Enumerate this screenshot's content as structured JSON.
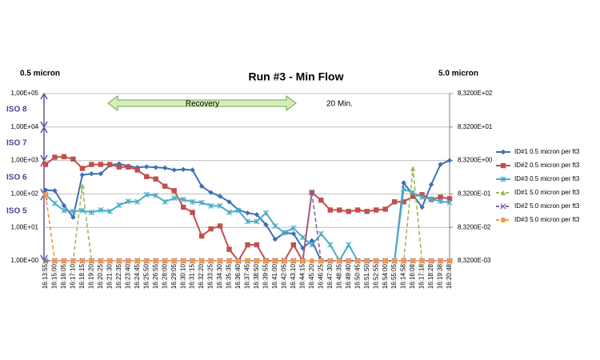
{
  "chart_data": {
    "type": "line",
    "title": "Run #3 - Min Flow",
    "y_axis_label": "0.5 micron",
    "y2_axis_label": "5.0 micron",
    "annotations": [
      "Recovery",
      "20 Min.",
      "ISO 8",
      "ISO 7",
      "ISO 6",
      "ISO 5"
    ],
    "log_scale": true,
    "legend": "right",
    "categories": [
      "16:13:55",
      "16:15:00",
      "16:16:05",
      "16:17:10",
      "16:18:15",
      "16:19:20",
      "16:20:25",
      "16:21:30",
      "16:22:35",
      "16:23:40",
      "16:24:45",
      "16:25:50",
      "16:26:55",
      "16:28:00",
      "16:29:05",
      "16:30:10",
      "16:31:15",
      "16:32:20",
      "16:33:25",
      "16:34:30",
      "16:35:35",
      "16:36:40",
      "16:37:45",
      "16:38:50",
      "16:39:55",
      "16:41:00",
      "16:42:05",
      "16:43:10",
      "16:44:15",
      "16:45:20",
      "16:46:25",
      "16:47:30",
      "16:48:35",
      "16:49:40",
      "16:50:45",
      "16:51:50",
      "16:52:55",
      "16:54:00",
      "16:55:05",
      "16:14:58",
      "16:16:08",
      "16:17:18",
      "16:18:28",
      "16:19:38",
      "16:20:48"
    ],
    "ylim": [
      1,
      100000
    ],
    "yticks": [
      {
        "value": 1,
        "label": "1,00E+00"
      },
      {
        "value": 10,
        "label": "1,00E+01"
      },
      {
        "value": 100,
        "label": "1,00E+02"
      },
      {
        "value": 1000,
        "label": "1,00E+03"
      },
      {
        "value": 10000,
        "label": "1,00E+04"
      },
      {
        "value": 100000,
        "label": "1,00E+05"
      }
    ],
    "y2lim": [
      0.00832,
      832
    ],
    "y2ticks": [
      {
        "value": 0.00832,
        "label": "8,3200E-03"
      },
      {
        "value": 0.0832,
        "label": "8,3200E-02"
      },
      {
        "value": 0.832,
        "label": "8,3200E-01"
      },
      {
        "value": 8.32,
        "label": "8,3200E+00"
      },
      {
        "value": 83.2,
        "label": "8,3200E+01"
      },
      {
        "value": 832,
        "label": "8,3200E+02"
      }
    ],
    "series": [
      {
        "name": "ID#1 0.5 micron per ft3",
        "color": "#3f6fb5",
        "marker": "diamond",
        "values": [
          130,
          125,
          45,
          20,
          370,
          400,
          400,
          720,
          800,
          680,
          620,
          650,
          620,
          600,
          520,
          540,
          520,
          170,
          110,
          85,
          58,
          33,
          27,
          24,
          12,
          4.4,
          6.8,
          6.5,
          2.4,
          4,
          1,
          1,
          1,
          1,
          1,
          1,
          1,
          1,
          1,
          215,
          95,
          40,
          190,
          760,
          1000
        ]
      },
      {
        "name": "ID#2 0.5 micron per ft3",
        "color": "#c0504d",
        "marker": "square",
        "values": [
          760,
          1250,
          1300,
          1100,
          580,
          760,
          760,
          760,
          640,
          640,
          520,
          330,
          280,
          170,
          125,
          40,
          28,
          5.5,
          9,
          11,
          2.2,
          1,
          3,
          3,
          1,
          1,
          1,
          3,
          1,
          110,
          65,
          33,
          33,
          30,
          33,
          30,
          33,
          35,
          58,
          58,
          85,
          95,
          68,
          80,
          72
        ]
      },
      {
        "name": "ID#3 0.5 micron per ft3",
        "color": "#4bacc6",
        "marker": "star",
        "values": [
          95,
          52,
          32,
          30,
          32,
          28,
          33,
          30,
          46,
          60,
          58,
          95,
          90,
          58,
          75,
          68,
          58,
          55,
          44,
          44,
          28,
          32,
          15,
          15,
          27,
          11,
          7,
          9.5,
          5,
          3,
          6.4,
          3,
          1,
          3,
          1,
          1,
          1,
          1,
          1,
          140,
          110,
          80,
          70,
          60,
          55
        ]
      },
      {
        "name": "ID#1 5.0 micron per ft3",
        "color": "#9bbb59",
        "marker": "triangle",
        "dashed": true,
        "axis": "y2",
        "values": [
          0.00832,
          0.00832,
          0.00832,
          0.00832,
          1.45,
          0.00832,
          0.00832,
          0.00832,
          0.00832,
          0.00832,
          0.00832,
          0.00832,
          0.00832,
          0.00832,
          0.00832,
          0.00832,
          0.00832,
          0.00832,
          0.00832,
          0.00832,
          0.00832,
          0.00832,
          0.00832,
          0.00832,
          0.00832,
          0.00832,
          0.00832,
          0.00832,
          0.00832,
          0.00832,
          0.00832,
          0.00832,
          0.00832,
          0.00832,
          0.00832,
          0.00832,
          0.00832,
          0.00832,
          0.00832,
          0.00832,
          4.8,
          0.00832,
          0.00832,
          0.00832,
          0.00832
        ]
      },
      {
        "name": "ID#2 5.0 micron per ft3",
        "color": "#8064a2",
        "marker": "x",
        "dashed": true,
        "axis": "y2",
        "values": [
          0.00832,
          0.00832,
          0.00832,
          0.00832,
          0.00832,
          0.00832,
          0.00832,
          0.00832,
          0.00832,
          0.00832,
          0.00832,
          0.00832,
          0.00832,
          0.00832,
          0.00832,
          0.00832,
          0.00832,
          0.00832,
          0.00832,
          0.00832,
          0.00832,
          0.00832,
          0.00832,
          0.00832,
          0.00832,
          0.00832,
          0.00832,
          0.00832,
          0.00832,
          0.93,
          0.00832,
          0.00832,
          0.00832,
          0.00832,
          0.00832,
          0.00832,
          0.00832,
          0.00832,
          0.00832,
          0.00832,
          0.00832,
          0.00832,
          0.00832,
          0.00832,
          0.00832
        ]
      },
      {
        "name": "ID#3 5.0 micron per ft3",
        "color": "#f79646",
        "marker": "circle",
        "dashed": true,
        "axis": "y2",
        "values": [
          0.79,
          0.00832,
          0.00832,
          0.00832,
          0.00832,
          0.00832,
          0.00832,
          0.00832,
          0.00832,
          0.00832,
          0.00832,
          0.00832,
          0.00832,
          0.00832,
          0.00832,
          0.00832,
          0.00832,
          0.00832,
          0.00832,
          0.00832,
          0.00832,
          0.00832,
          0.00832,
          0.00832,
          0.00832,
          0.00832,
          0.00832,
          0.00832,
          0.00832,
          0.00832,
          0.00832,
          0.00832,
          0.00832,
          0.00832,
          0.00832,
          0.00832,
          0.00832,
          0.00832,
          0.00832,
          0.00832,
          0.00832,
          0.00832,
          0.00832,
          0.00832,
          0.00832
        ]
      }
    ]
  }
}
